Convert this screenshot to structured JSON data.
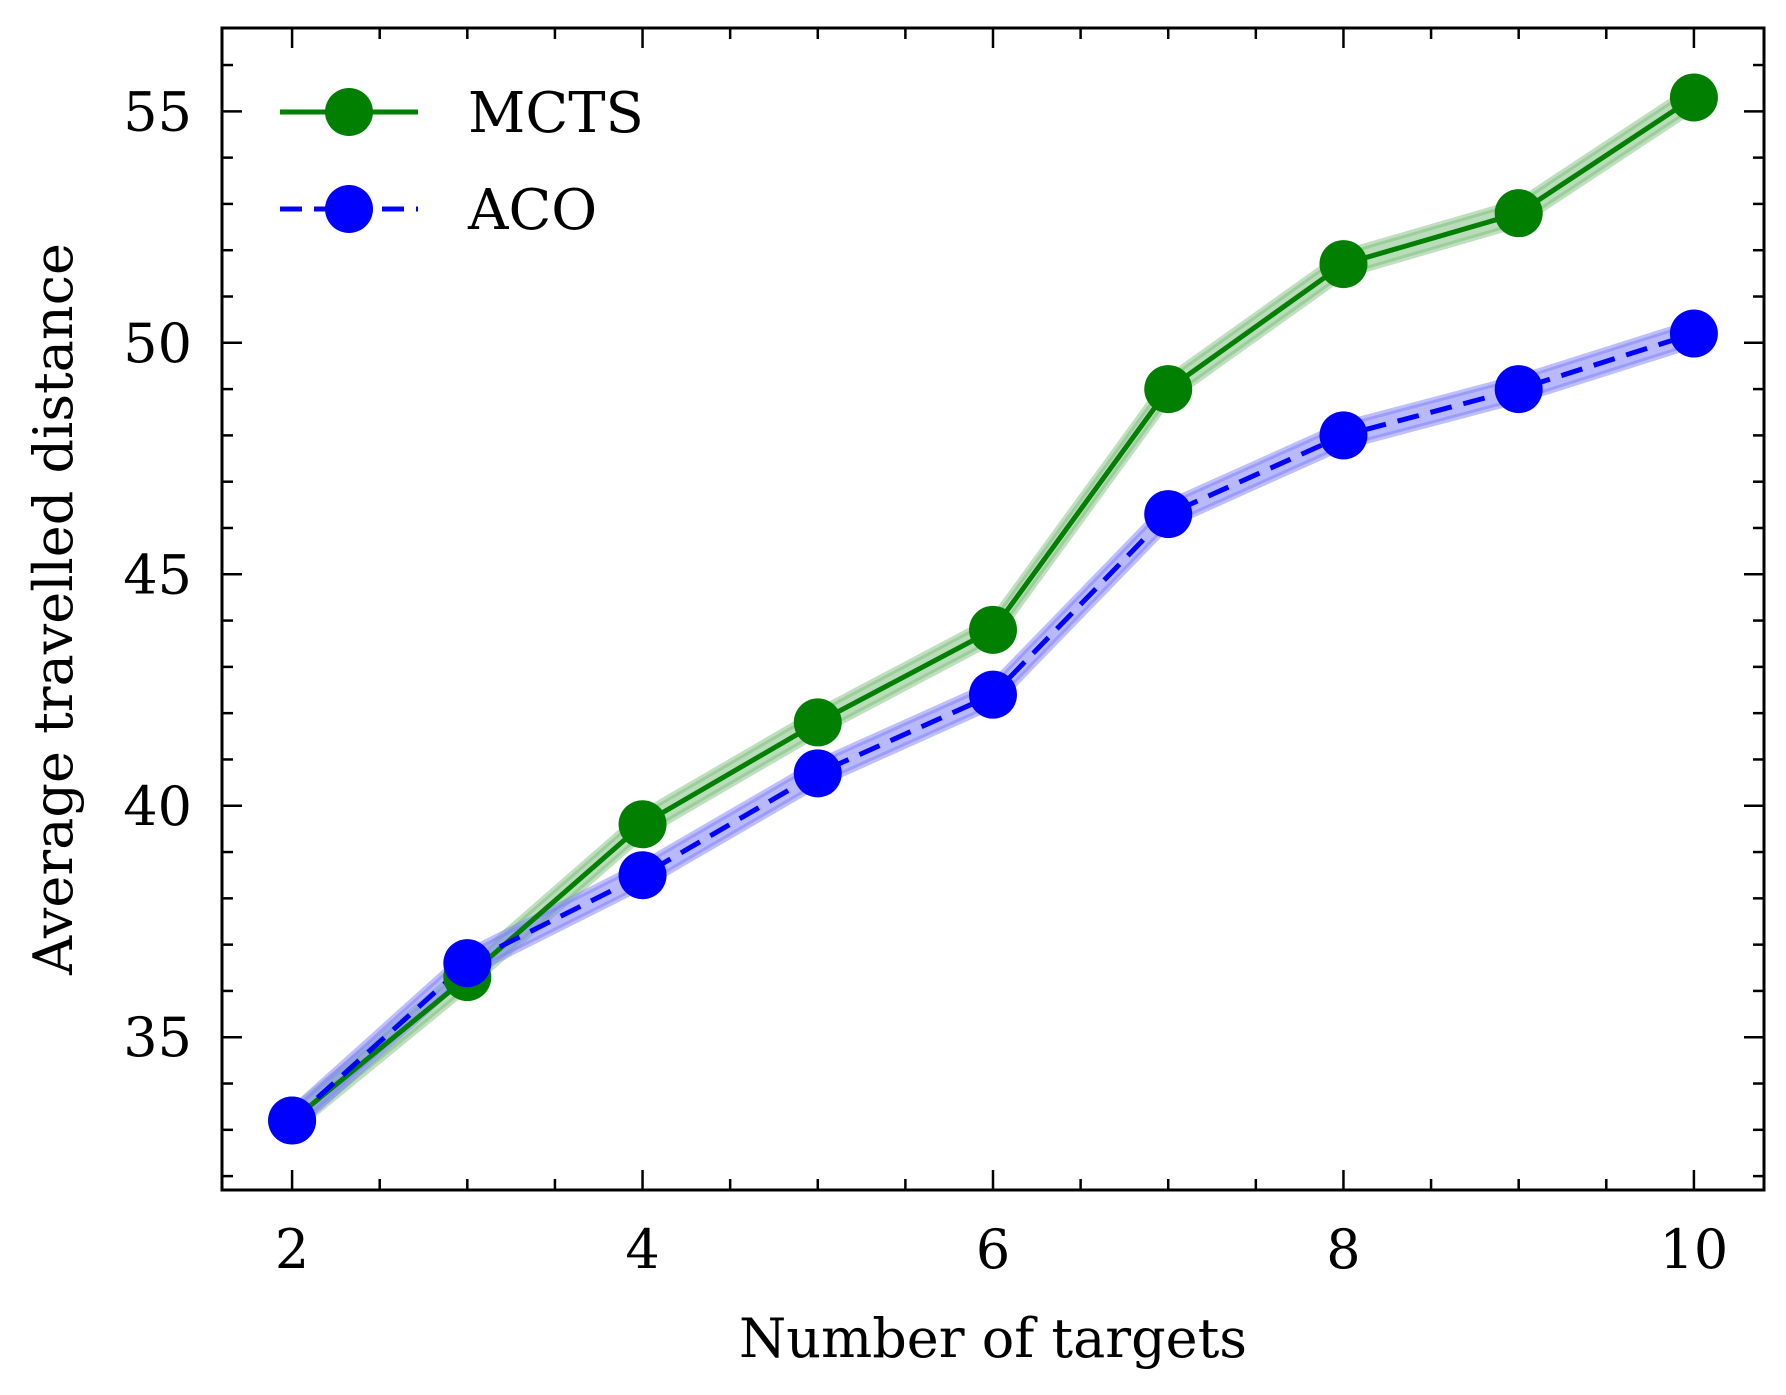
{
  "chart_data": {
    "type": "line",
    "title": "",
    "xlabel": "Number of targets",
    "ylabel": "Average travelled distance",
    "xlim": [
      1.6,
      10.4
    ],
    "ylim": [
      31.7,
      56.8
    ],
    "xticks": [
      2,
      4,
      6,
      8,
      10
    ],
    "yticks": [
      35,
      40,
      45,
      50,
      55
    ],
    "x_minor_step": 0.5,
    "y_minor_step": 1,
    "grid": false,
    "legend_position": "upper-left",
    "x": [
      2,
      3,
      4,
      5,
      6,
      7,
      8,
      9,
      10
    ],
    "series": [
      {
        "name": "MCTS",
        "color": "#007f00",
        "band_color": "#7fbf7f",
        "line_style": "solid",
        "marker": "circle",
        "values": [
          33.2,
          36.3,
          39.6,
          41.8,
          43.8,
          49.0,
          51.7,
          52.8,
          55.3
        ],
        "band": 0.25
      },
      {
        "name": "ACO",
        "color": "#0000ff",
        "band_color": "#8080ff",
        "line_style": "dashed",
        "marker": "circle",
        "values": [
          33.2,
          36.6,
          38.5,
          40.7,
          42.4,
          46.3,
          48.0,
          49.0,
          50.2
        ],
        "band": 0.25
      }
    ]
  }
}
